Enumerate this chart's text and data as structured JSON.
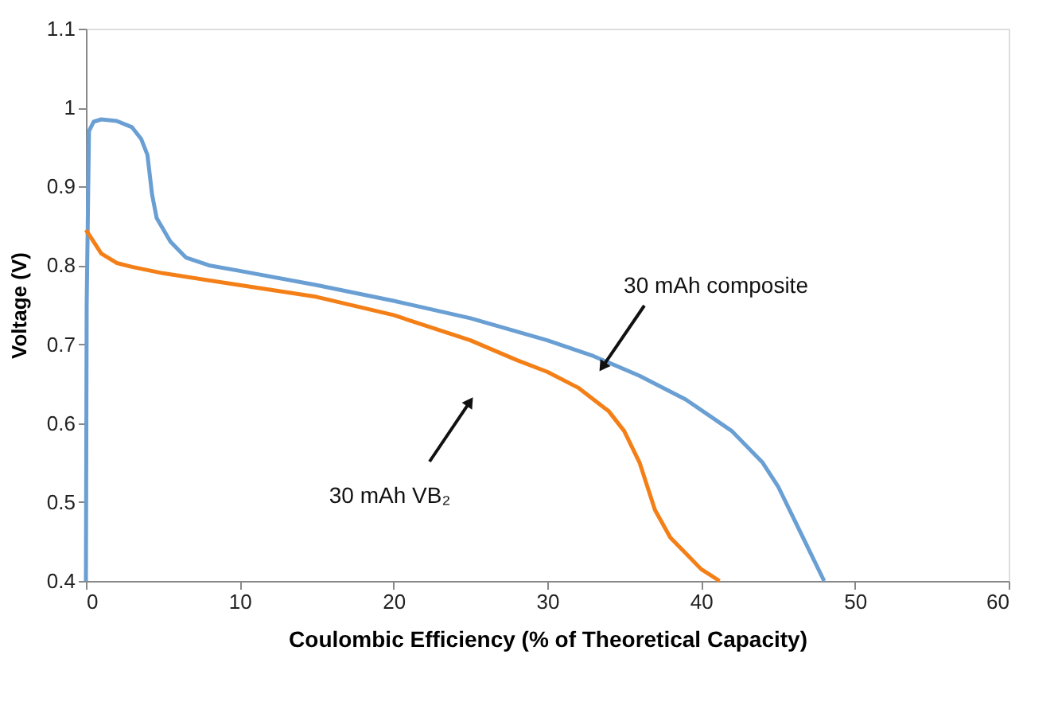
{
  "chart_data": {
    "type": "line",
    "xlabel": "Coulombic Efficiency (% of Theoretical Capacity)",
    "ylabel": "Voltage (V)",
    "xlim": [
      0,
      60
    ],
    "xticks": [
      0,
      10,
      20,
      30,
      40,
      50,
      60
    ],
    "ylim": [
      0.4,
      1.1
    ],
    "yticks": [
      0.4,
      0.5,
      0.6,
      0.7,
      0.8,
      0.9,
      {
        "value": 1,
        "label": "1"
      },
      1.1
    ],
    "grid": false,
    "marker": "none",
    "line_style": "solid",
    "series": [
      {
        "color": "#6a9fd4",
        "x": [
          0,
          0.05,
          0.2,
          0.5,
          1,
          2,
          3,
          3.6,
          4,
          4.3,
          4.6,
          5.5,
          6.5,
          8,
          10,
          15,
          20,
          25,
          30,
          33,
          36,
          39,
          42,
          44,
          45,
          46,
          47,
          48
        ],
        "values": [
          0.4,
          0.75,
          0.97,
          0.982,
          0.985,
          0.983,
          0.975,
          0.96,
          0.94,
          0.89,
          0.86,
          0.83,
          0.81,
          0.8,
          0.793,
          0.775,
          0.755,
          0.733,
          0.705,
          0.685,
          0.66,
          0.63,
          0.59,
          0.55,
          0.52,
          0.48,
          0.44,
          0.4
        ]
      },
      {
        "color": "#f47f17",
        "x": [
          0,
          0.5,
          1,
          2,
          3,
          5,
          10,
          15,
          20,
          25,
          28,
          30,
          32,
          34,
          35,
          36,
          37,
          38,
          39,
          40,
          41.2
        ],
        "values": [
          0.845,
          0.83,
          0.815,
          0.803,
          0.798,
          0.79,
          0.775,
          0.76,
          0.737,
          0.705,
          0.68,
          0.665,
          0.645,
          0.615,
          0.59,
          0.55,
          0.49,
          0.455,
          0.435,
          0.415,
          0.4
        ]
      }
    ],
    "annotations": [
      "30 mAh composite",
      "30 mAh VB₂"
    ]
  }
}
